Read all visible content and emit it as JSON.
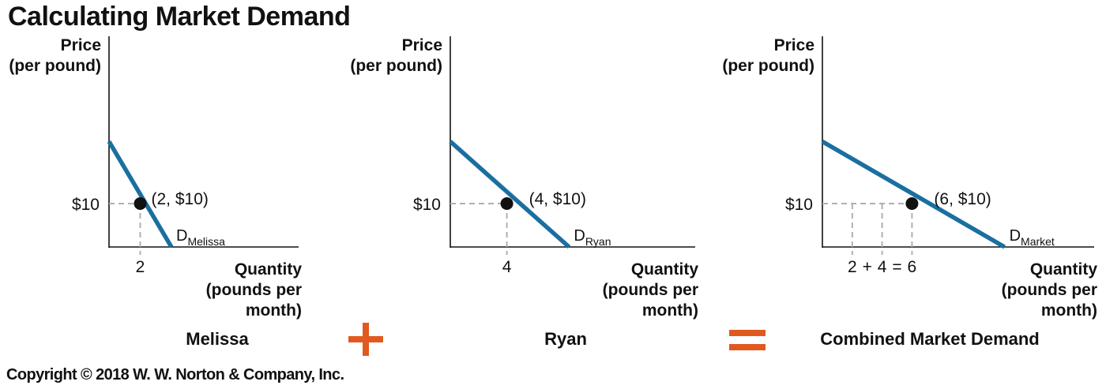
{
  "title": "Calculating Market Demand",
  "copyright": "Copyright © 2018 W. W. Norton & Company, Inc.",
  "colors": {
    "curve": "#1a6fa0",
    "operator": "#e05a1f",
    "dashed": "#b0b0b0",
    "point": "#111111"
  },
  "operators": [
    "plus",
    "equals"
  ],
  "chart_data": [
    {
      "type": "line",
      "ylabel": [
        "Price",
        "(per pound)"
      ],
      "xlabel": [
        "Quantity",
        "(pounds per",
        "month)"
      ],
      "panel_label": "Melissa",
      "y_tick": "$10",
      "x_tick_labels": [
        "2"
      ],
      "curve_label": {
        "main": "D",
        "sub": "Melissa"
      },
      "point_label": "(2, $10)",
      "point": {
        "x": 2,
        "y": 10
      },
      "series": [
        {
          "x": [
            0,
            4
          ],
          "y": [
            24.3,
            0
          ]
        }
      ],
      "xlim": [
        0,
        11.5
      ],
      "ylim": [
        0,
        27
      ]
    },
    {
      "type": "line",
      "ylabel": [
        "Price",
        "(per pound)"
      ],
      "xlabel": [
        "Quantity",
        "(pounds per",
        "month)"
      ],
      "panel_label": "Ryan",
      "y_tick": "$10",
      "x_tick_labels": [
        "4"
      ],
      "curve_label": {
        "main": "D",
        "sub": "Ryan"
      },
      "point_label": "(4, $10)",
      "point": {
        "x": 4,
        "y": 10
      },
      "series": [
        {
          "x": [
            0,
            8.4
          ],
          "y": [
            24.3,
            0
          ]
        }
      ],
      "xlim": [
        0,
        19
      ],
      "ylim": [
        0,
        27
      ]
    },
    {
      "type": "line",
      "ylabel": [
        "Price",
        "(per pound)"
      ],
      "xlabel": [
        "Quantity",
        "(pounds per",
        "month)"
      ],
      "panel_label": "Combined Market Demand",
      "y_tick": "$10",
      "x_tick_labels": [
        "2",
        "+",
        "4",
        "=",
        "6"
      ],
      "x_guides": [
        2,
        4,
        6
      ],
      "curve_label": {
        "main": "D",
        "sub": "Market"
      },
      "point_label": "(6, $10)",
      "point": {
        "x": 6,
        "y": 10
      },
      "series": [
        {
          "x": [
            0,
            12.2
          ],
          "y": [
            24.3,
            0
          ]
        }
      ],
      "xlim": [
        0,
        18.5
      ],
      "ylim": [
        0,
        27
      ]
    }
  ]
}
